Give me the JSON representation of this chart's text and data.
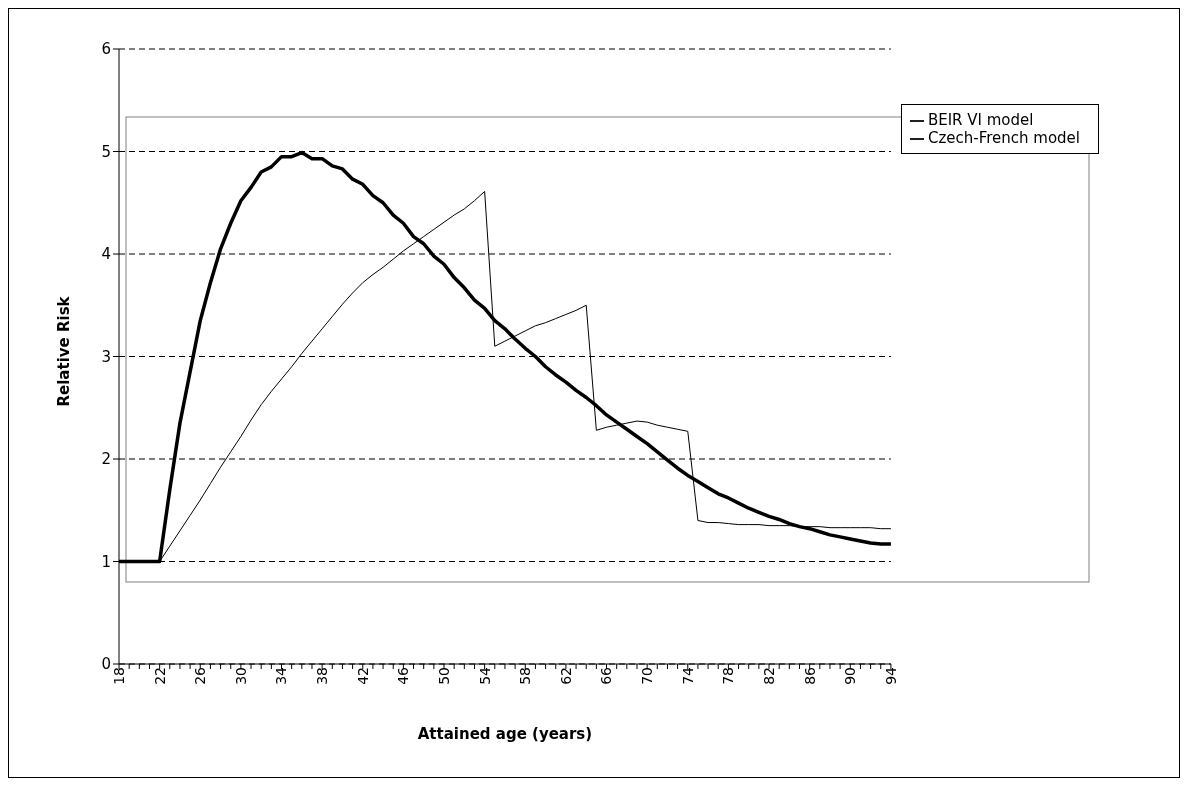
{
  "chart_data": {
    "type": "line",
    "xlabel": "Attained age (years)",
    "ylabel": "Relative Risk",
    "categories": [
      "18",
      null,
      null,
      null,
      "22",
      null,
      null,
      null,
      "26",
      null,
      null,
      null,
      "30",
      null,
      null,
      null,
      "34",
      null,
      null,
      null,
      "38",
      null,
      null,
      null,
      "42",
      null,
      null,
      null,
      "46",
      null,
      null,
      null,
      "50",
      null,
      null,
      null,
      "54",
      null,
      null,
      null,
      "58",
      null,
      null,
      null,
      "62",
      null,
      null,
      null,
      "66",
      null,
      null,
      null,
      "70",
      null,
      null,
      null,
      "74",
      null,
      null,
      null,
      "78",
      null,
      null,
      null,
      "82",
      null,
      null,
      null,
      "86",
      null,
      null,
      null,
      "90",
      null,
      null,
      null,
      "94"
    ],
    "series": [
      {
        "name": "BEIR VI model",
        "color": "#000000",
        "values": [
          1,
          1,
          1,
          1,
          1,
          1.15,
          1.3,
          1.45,
          1.6,
          1.76,
          1.92,
          2.07,
          2.22,
          2.38,
          2.53,
          2.66,
          2.78,
          2.9,
          3.03,
          3.15,
          3.27,
          3.39,
          3.51,
          3.62,
          3.72,
          3.8,
          3.87,
          3.95,
          4.03,
          4.1,
          4.17,
          4.24,
          4.31,
          4.38,
          4.44,
          4.52,
          4.61,
          3.1,
          3.15,
          3.2,
          3.25,
          3.3,
          3.33,
          3.37,
          3.41,
          3.45,
          3.5,
          2.28,
          2.31,
          2.33,
          2.35,
          2.37,
          2.36,
          2.33,
          2.31,
          2.29,
          2.27,
          1.4,
          1.38,
          1.38,
          1.37,
          1.36,
          1.36,
          1.36,
          1.35,
          1.35,
          1.35,
          1.34,
          1.34,
          1.34,
          1.33,
          1.33,
          1.33,
          1.33,
          1.33,
          1.32,
          1.32
        ]
      },
      {
        "name": "Czech-French model",
        "color": "#000000",
        "values": [
          1,
          1,
          1,
          1,
          1,
          1.7,
          2.35,
          2.85,
          3.35,
          3.72,
          4.05,
          4.3,
          4.52,
          4.65,
          4.8,
          4.85,
          4.95,
          4.95,
          4.99,
          4.93,
          4.93,
          4.86,
          4.83,
          4.73,
          4.68,
          4.57,
          4.5,
          4.38,
          4.3,
          4.17,
          4.1,
          3.98,
          3.9,
          3.77,
          3.67,
          3.55,
          3.47,
          3.35,
          3.27,
          3.17,
          3.08,
          3,
          2.9,
          2.82,
          2.75,
          2.67,
          2.6,
          2.52,
          2.43,
          2.36,
          2.29,
          2.22,
          2.15,
          2.07,
          1.99,
          1.91,
          1.84,
          1.78,
          1.72,
          1.66,
          1.62,
          1.57,
          1.52,
          1.48,
          1.44,
          1.41,
          1.37,
          1.34,
          1.32,
          1.29,
          1.26,
          1.24,
          1.22,
          1.2,
          1.18,
          1.17,
          1.17
        ]
      }
    ],
    "ylim": [
      0,
      6
    ],
    "yticks": [
      0,
      1,
      2,
      3,
      4,
      5,
      6
    ],
    "grid": "y",
    "line_style": "solid",
    "marker": "none",
    "legend": "top right"
  }
}
